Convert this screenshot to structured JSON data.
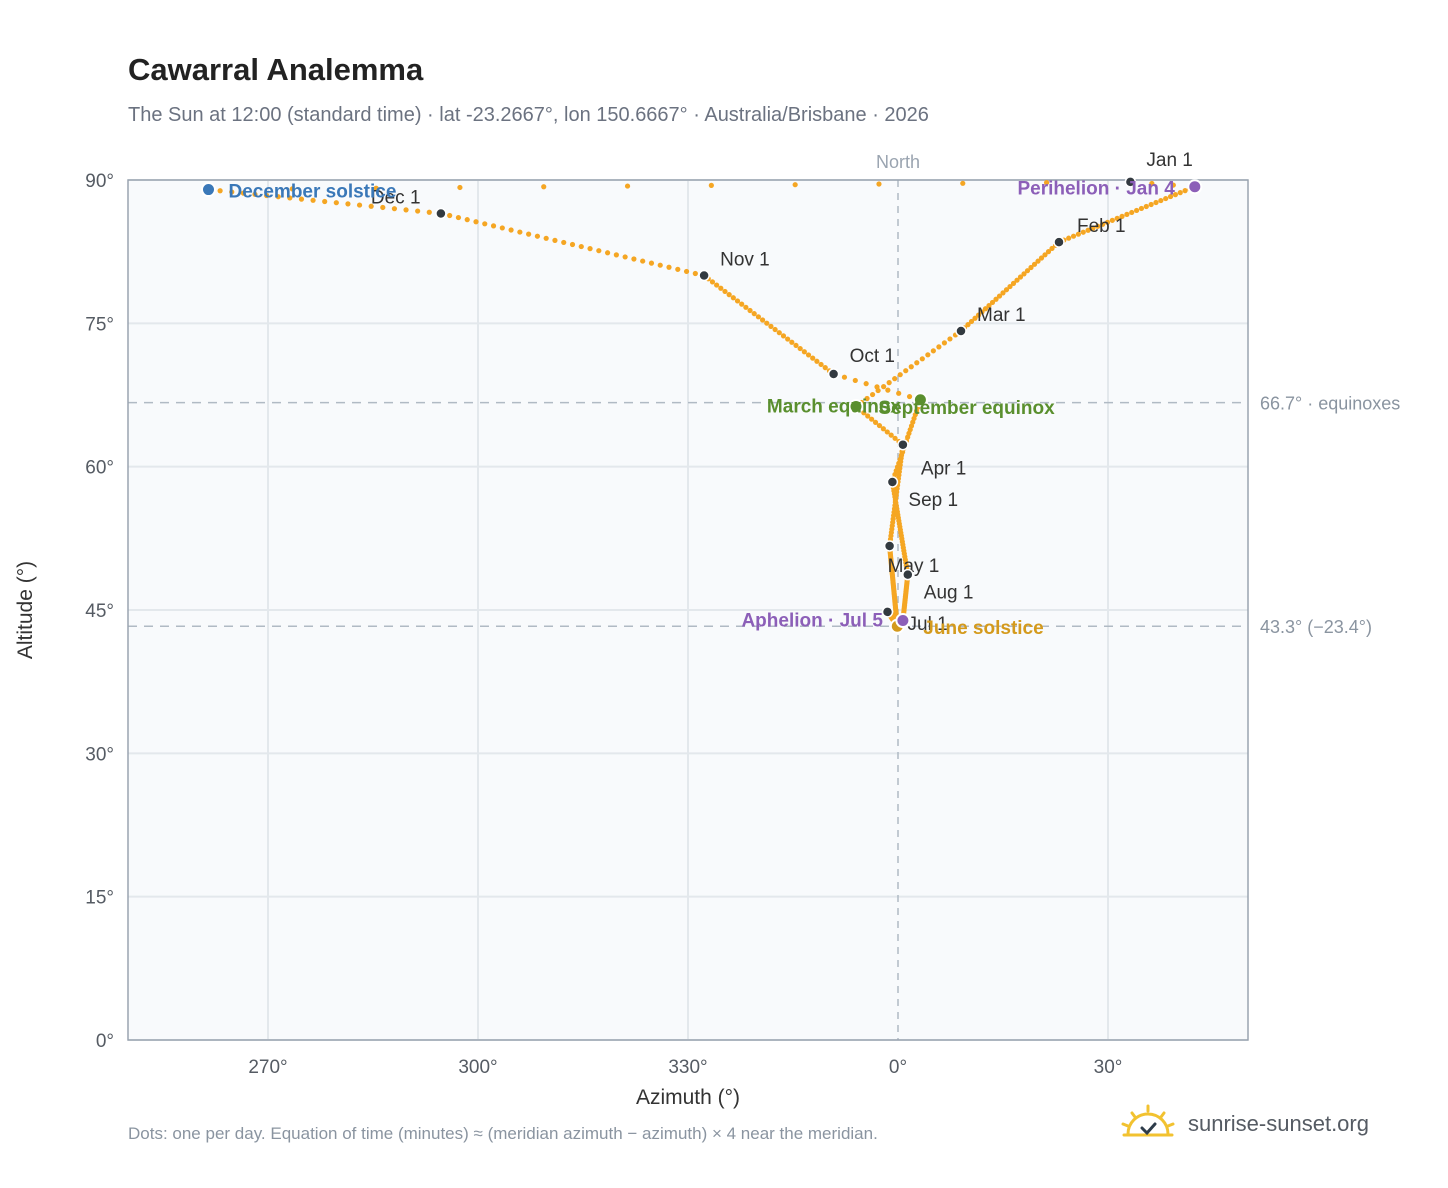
{
  "header": {
    "title": "Cawarral Analemma",
    "subtitle": "The Sun at 12:00 (standard time) · lat -23.2667°, lon 150.6667° · Australia/Brisbane · 2026"
  },
  "footer": {
    "note": "Dots: one per day. Equation of time (minutes) ≈ (meridian azimuth − azimuth) × 4 near the meridian.",
    "brand": "sunrise-sunset.org",
    "brand_icon": "sun-logo-icon"
  },
  "colors": {
    "path": "#f5a623",
    "month_dot": "#333a40",
    "december_solstice": "#3a78b8",
    "june_solstice": "#d49a1c",
    "equinox": "#5a8f2e",
    "perihelion": "#8c5fb8",
    "plot_bg": "#f8fafc",
    "grid": "#e3e8ec",
    "frame": "#9aa4b0",
    "ref_line": "#b0bac4"
  },
  "chart_data": {
    "type": "scatter",
    "xlabel": "Azimuth (°)",
    "ylabel": "Altitude (°)",
    "xlim": [
      250,
      50
    ],
    "x_unit": "azimuth degrees; ticks wrap through 0° (North)",
    "ylim": [
      0,
      90
    ],
    "x_ticks": [
      "270°",
      "300°",
      "330°",
      "0°",
      "30°"
    ],
    "y_ticks": [
      "0°",
      "15°",
      "30°",
      "45°",
      "60°",
      "75°",
      "90°"
    ],
    "grid": true,
    "meridian_label": "North",
    "reference_lines": [
      {
        "altitude": 66.7,
        "label": "66.7° · equinoxes"
      },
      {
        "altitude": 43.3,
        "label": "43.3° (−23.4°)"
      }
    ],
    "series": [
      {
        "name": "daily",
        "points_by_date": [
          {
            "date": "Jan 1",
            "az": 33.2,
            "alt": 89.8
          },
          {
            "date": "Jan 4",
            "az": 42.4,
            "alt": 89.3
          },
          {
            "date": "Feb 1",
            "az": 23.0,
            "alt": 83.5
          },
          {
            "date": "Mar 1",
            "az": 9.0,
            "alt": 74.2
          },
          {
            "date": "Mar 20",
            "az": 354.0,
            "alt": 66.3
          },
          {
            "date": "Apr 1",
            "az": 0.7,
            "alt": 62.3
          },
          {
            "date": "May 1",
            "az": 358.8,
            "alt": 51.7
          },
          {
            "date": "Jun 21",
            "az": 359.9,
            "alt": 43.3
          },
          {
            "date": "Jul 1",
            "az": 358.5,
            "alt": 44.8
          },
          {
            "date": "Jul 5",
            "az": 0.7,
            "alt": 43.9
          },
          {
            "date": "Aug 1",
            "az": 1.4,
            "alt": 48.7
          },
          {
            "date": "Sep 1",
            "az": 359.2,
            "alt": 58.4
          },
          {
            "date": "Sep 23",
            "az": 3.2,
            "alt": 67.0
          },
          {
            "date": "Oct 1",
            "az": 350.8,
            "alt": 69.7
          },
          {
            "date": "Nov 1",
            "az": 332.3,
            "alt": 80.0
          },
          {
            "date": "Dec 1",
            "az": 294.7,
            "alt": 86.5
          },
          {
            "date": "Dec 21",
            "az": 261.5,
            "alt": 89.0
          }
        ]
      }
    ],
    "month_labels": [
      {
        "date": "Jan 1",
        "text": "Jan 1"
      },
      {
        "date": "Feb 1",
        "text": "Feb 1"
      },
      {
        "date": "Mar 1",
        "text": "Mar 1"
      },
      {
        "date": "Apr 1",
        "text": "Apr 1"
      },
      {
        "date": "May 1",
        "text": "May 1"
      },
      {
        "date": "Jul 1",
        "text": "Jul 1"
      },
      {
        "date": "Aug 1",
        "text": "Aug 1"
      },
      {
        "date": "Sep 1",
        "text": "Sep 1"
      },
      {
        "date": "Oct 1",
        "text": "Oct 1"
      },
      {
        "date": "Nov 1",
        "text": "Nov 1"
      },
      {
        "date": "Dec 1",
        "text": "Dec 1"
      }
    ],
    "events": [
      {
        "text": "December solstice",
        "date": "Dec 21",
        "color": "december_solstice"
      },
      {
        "text": "June solstice",
        "date": "Jun 21",
        "color": "june_solstice"
      },
      {
        "text": "March equinox",
        "date": "Mar 20",
        "color": "equinox"
      },
      {
        "text": "September equinox",
        "date": "Sep 23",
        "color": "equinox"
      },
      {
        "text": "Perihelion · Jan 4",
        "date": "Jan 4",
        "color": "perihelion"
      },
      {
        "text": "Aphelion · Jul 5",
        "date": "Jul 5",
        "color": "perihelion"
      }
    ]
  }
}
